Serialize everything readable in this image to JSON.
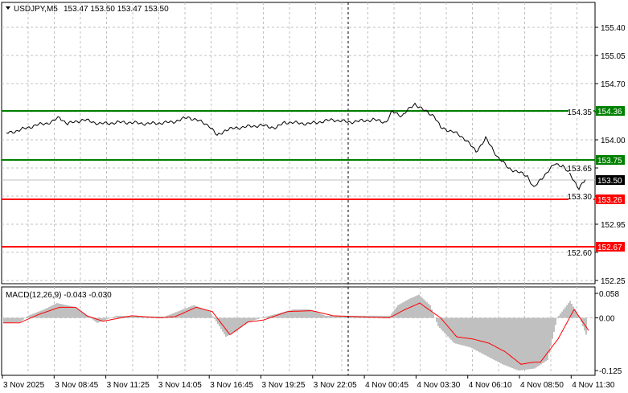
{
  "header": {
    "symbol_label": "USDJPY,M5",
    "ohlc": "153.47 153.50 153.47 153.50",
    "dropdown_icon": "triangle-down-icon"
  },
  "price_axis": {
    "ticks": [
      "155.40",
      "155.05",
      "154.70",
      "154.35",
      "154.00",
      "153.65",
      "153.30",
      "152.95",
      "152.60",
      "152.25"
    ],
    "tick_values": [
      155.4,
      155.05,
      154.7,
      154.35,
      154.0,
      153.65,
      153.3,
      152.95,
      152.6,
      152.25
    ],
    "current_price": "153.50",
    "current_price_value": 153.5
  },
  "levels": [
    {
      "label": "154.36",
      "value": 154.36,
      "color": "#008000"
    },
    {
      "label": "153.75",
      "value": 153.75,
      "color": "#008000"
    },
    {
      "label": "153.26",
      "value": 153.26,
      "color": "#ff0000"
    },
    {
      "label": "152.67",
      "value": 152.67,
      "color": "#ff0000"
    }
  ],
  "price_series": [
    [
      2,
      154.08
    ],
    [
      10,
      154.12
    ],
    [
      20,
      154.18
    ],
    [
      30,
      154.22
    ],
    [
      35,
      154.28
    ],
    [
      40,
      154.2
    ],
    [
      50,
      154.25
    ],
    [
      60,
      154.2
    ],
    [
      75,
      154.22
    ],
    [
      90,
      154.2
    ],
    [
      105,
      154.22
    ],
    [
      115,
      154.28
    ],
    [
      120,
      154.25
    ],
    [
      128,
      154.18
    ],
    [
      133,
      154.05
    ],
    [
      138,
      154.12
    ],
    [
      145,
      154.15
    ],
    [
      160,
      154.18
    ],
    [
      170,
      154.15
    ],
    [
      175,
      154.22
    ],
    [
      190,
      154.2
    ],
    [
      205,
      154.25
    ],
    [
      215,
      154.22
    ],
    [
      230,
      154.25
    ],
    [
      238,
      154.22
    ],
    [
      242,
      154.35
    ],
    [
      248,
      154.3
    ],
    [
      256,
      154.45
    ],
    [
      262,
      154.36
    ],
    [
      268,
      154.3
    ],
    [
      272,
      154.15
    ],
    [
      280,
      154.1
    ],
    [
      288,
      154.0
    ],
    [
      294,
      153.85
    ],
    [
      300,
      154.02
    ],
    [
      307,
      153.8
    ],
    [
      314,
      153.65
    ],
    [
      320,
      153.6
    ],
    [
      326,
      153.55
    ],
    [
      330,
      153.4
    ],
    [
      336,
      153.55
    ],
    [
      343,
      153.7
    ],
    [
      348,
      153.68
    ],
    [
      353,
      153.55
    ],
    [
      358,
      153.4
    ],
    [
      362,
      153.5
    ]
  ],
  "macd": {
    "label": "MACD(12,26,9) -0.043 -0.030",
    "ticks": [
      "0.058",
      "0.00",
      "-0.125"
    ],
    "tick_values": [
      0.058,
      0,
      -0.125
    ],
    "histogram_color": "#c0c0c0",
    "signal_color": "#ff0000",
    "histogram": [
      [
        0,
        -0.012
      ],
      [
        10,
        -0.01
      ],
      [
        15,
        0.005
      ],
      [
        25,
        0.02
      ],
      [
        33,
        0.035
      ],
      [
        45,
        0.025
      ],
      [
        52,
        0.005
      ],
      [
        58,
        -0.012
      ],
      [
        63,
        -0.005
      ],
      [
        70,
        0.005
      ],
      [
        100,
        0.003
      ],
      [
        108,
        0.015
      ],
      [
        118,
        0.03
      ],
      [
        128,
        0.015
      ],
      [
        134,
        -0.02
      ],
      [
        138,
        -0.045
      ],
      [
        145,
        -0.03
      ],
      [
        152,
        -0.01
      ],
      [
        160,
        0.0
      ],
      [
        170,
        0.01
      ],
      [
        180,
        0.02
      ],
      [
        190,
        0.02
      ],
      [
        200,
        0.005
      ],
      [
        240,
        0.005
      ],
      [
        245,
        0.03
      ],
      [
        252,
        0.045
      ],
      [
        258,
        0.055
      ],
      [
        265,
        0.03
      ],
      [
        270,
        -0.02
      ],
      [
        275,
        -0.04
      ],
      [
        280,
        -0.06
      ],
      [
        290,
        -0.07
      ],
      [
        300,
        -0.09
      ],
      [
        310,
        -0.11
      ],
      [
        320,
        -0.125
      ],
      [
        330,
        -0.12
      ],
      [
        338,
        -0.1
      ],
      [
        344,
        0.0
      ],
      [
        352,
        0.04
      ],
      [
        358,
        0.0
      ],
      [
        362,
        -0.04
      ]
    ],
    "signal": [
      [
        0,
        -0.012
      ],
      [
        10,
        -0.012
      ],
      [
        22,
        0.008
      ],
      [
        35,
        0.025
      ],
      [
        45,
        0.025
      ],
      [
        52,
        0.005
      ],
      [
        62,
        -0.008
      ],
      [
        80,
        0.005
      ],
      [
        97,
        0.0
      ],
      [
        107,
        0.003
      ],
      [
        120,
        0.025
      ],
      [
        130,
        0.015
      ],
      [
        141,
        -0.04
      ],
      [
        152,
        -0.01
      ],
      [
        162,
        -0.005
      ],
      [
        177,
        0.015
      ],
      [
        192,
        0.017
      ],
      [
        205,
        0.005
      ],
      [
        218,
        0.003
      ],
      [
        240,
        0.0
      ],
      [
        250,
        0.02
      ],
      [
        259,
        0.035
      ],
      [
        272,
        0.0
      ],
      [
        282,
        -0.045
      ],
      [
        292,
        -0.05
      ],
      [
        302,
        -0.06
      ],
      [
        312,
        -0.08
      ],
      [
        322,
        -0.11
      ],
      [
        330,
        -0.105
      ],
      [
        334,
        -0.105
      ],
      [
        345,
        -0.05
      ],
      [
        355,
        0.02
      ],
      [
        364,
        -0.03
      ]
    ]
  },
  "time_axis": [
    "3 Nov 2025",
    "3 Nov 08:45",
    "3 Nov 11:25",
    "3 Nov 14:05",
    "3 Nov 16:45",
    "3 Nov 19:25",
    "3 Nov 22:05",
    "4 Nov 00:45",
    "4 Nov 03:30",
    "4 Nov 06:10",
    "4 Nov 08:50",
    "4 Nov 11:30"
  ]
}
